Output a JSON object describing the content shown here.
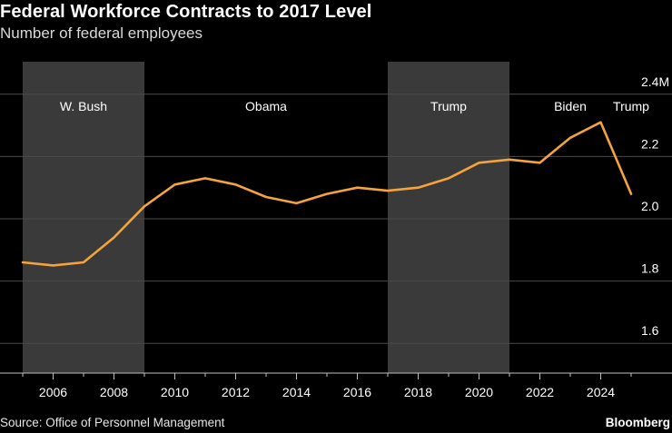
{
  "header": {
    "title": "Federal Workforce Contracts to 2017 Level",
    "subtitle": "Number of federal employees"
  },
  "footer": {
    "source": "Source: Office of Personnel Management",
    "brand": "Bloomberg"
  },
  "colors": {
    "background": "#000000",
    "line": "#f5a33a",
    "shade": "#3a3a3a",
    "grid": "#4a4a4a",
    "text": "#ffffff"
  },
  "chart_data": {
    "type": "line",
    "title": "Federal Workforce Contracts to 2017 Level",
    "subtitle": "Number of federal employees",
    "x": [
      2005,
      2006,
      2007,
      2008,
      2009,
      2010,
      2011,
      2012,
      2013,
      2014,
      2015,
      2016,
      2017,
      2018,
      2019,
      2020,
      2021,
      2022,
      2023,
      2024,
      2025
    ],
    "series": [
      {
        "values": [
          1.86,
          1.85,
          1.86,
          1.94,
          2.04,
          2.11,
          2.13,
          2.11,
          2.07,
          2.05,
          2.08,
          2.1,
          2.09,
          2.1,
          2.13,
          2.18,
          2.19,
          2.18,
          2.26,
          2.31,
          2.08
        ]
      }
    ],
    "xlim": [
      2005,
      2025
    ],
    "ylim": [
      1.5,
      2.5
    ],
    "x_ticks": [
      2006,
      2008,
      2010,
      2012,
      2014,
      2016,
      2018,
      2020,
      2022,
      2024
    ],
    "y_ticks": [
      {
        "value": 1.6,
        "label": "1.6"
      },
      {
        "value": 1.8,
        "label": "1.8"
      },
      {
        "value": 2.0,
        "label": "2.0"
      },
      {
        "value": 2.2,
        "label": "2.2"
      },
      {
        "value": 2.4,
        "label": "2.4M"
      }
    ],
    "grid": true,
    "shaded_periods": [
      {
        "start": 2005,
        "end": 2009,
        "label": "W. Bush",
        "shaded": true
      },
      {
        "start": 2009,
        "end": 2017,
        "label": "Obama",
        "shaded": false
      },
      {
        "start": 2017,
        "end": 2021,
        "label": "Trump",
        "shaded": true
      },
      {
        "start": 2021,
        "end": 2025,
        "label": "Biden",
        "shaded": false
      },
      {
        "start": 2025,
        "end": 2026,
        "label": "Trump",
        "shaded": true
      }
    ]
  }
}
